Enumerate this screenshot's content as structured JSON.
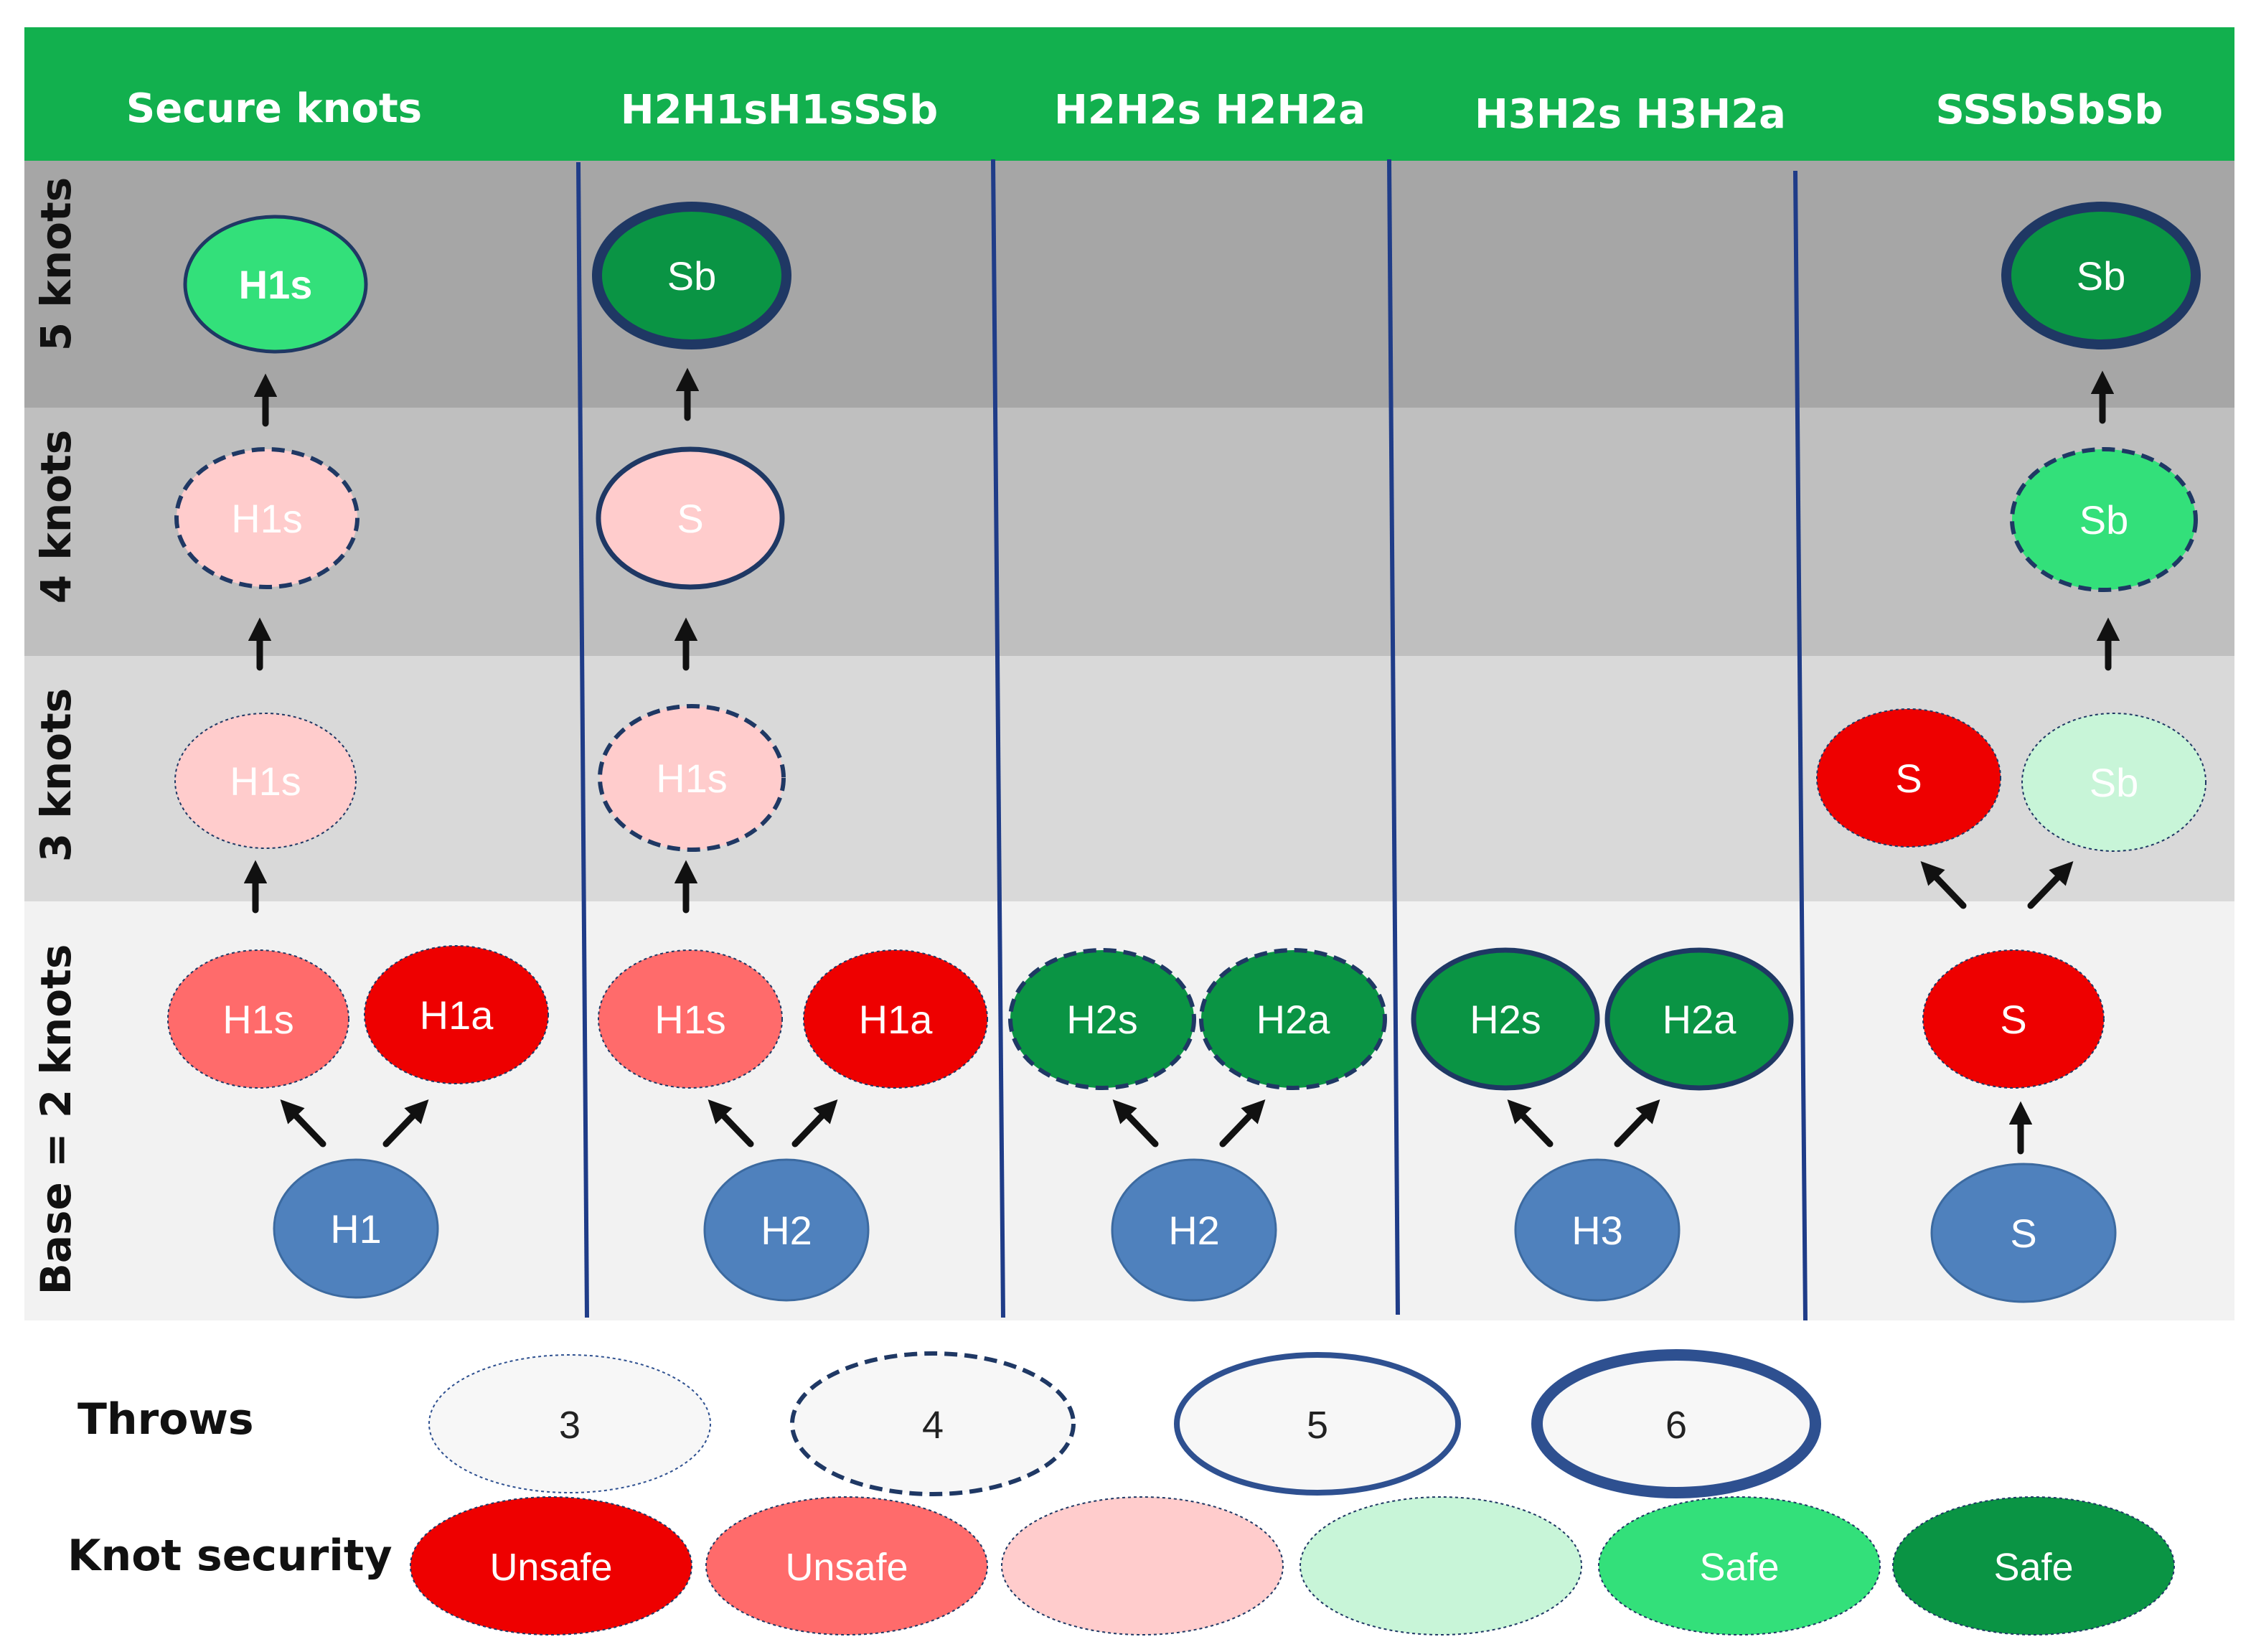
{
  "columns": [
    {
      "id": "secure",
      "label": "Secure knots"
    },
    {
      "id": "h2h1",
      "label": "H2H1sH1sSSb"
    },
    {
      "id": "h2h2",
      "label": "H2H2s H2H2a"
    },
    {
      "id": "h3h2",
      "label": "H3H2s H3H2a"
    },
    {
      "id": "sssb",
      "label": "SSSbSbSb"
    }
  ],
  "rows": [
    {
      "id": "r5",
      "label": "5 knots"
    },
    {
      "id": "r4",
      "label": "4 knots"
    },
    {
      "id": "r3",
      "label": "3 knots"
    },
    {
      "id": "r2",
      "label": "Base = 2 knots"
    }
  ],
  "colors": {
    "header_green": "#12b04e",
    "row5_bg": "#a6a6a6",
    "row4_bg": "#bfbfbf",
    "row3_bg": "#d9d9d9",
    "row2_bg": "#f2f2f2",
    "divider": "#1f3c88",
    "base_blue": "#4f81bd",
    "unsafe_dark": "#ee0000",
    "unsafe_mid": "#ff6b6b",
    "unsafe_light": "#ffcccc",
    "safe_light": "#c8f5d8",
    "safe_mid": "#33e07a",
    "safe_dark": "#0a9444",
    "outline": "#1f3864"
  },
  "nodes": {
    "c1_r5": "H1s",
    "c1_r4": "H1s",
    "c1_r3": "H1s",
    "c1_r2a": "H1s",
    "c1_r2b": "H1a",
    "c1_base": "H1",
    "c2_r5": "Sb",
    "c2_r4": "S",
    "c2_r3": "H1s",
    "c2_r2a": "H1s",
    "c2_r2b": "H1a",
    "c2_base": "H2",
    "c3_r2a": "H2s",
    "c3_r2b": "H2a",
    "c3_base": "H2",
    "c4_r2a": "H2s",
    "c4_r2b": "H2a",
    "c4_base": "H3",
    "c5_r5": "Sb",
    "c5_r4": "Sb",
    "c5_r3a": "S",
    "c5_r3b": "Sb",
    "c5_r2": "S",
    "c5_base": "S"
  },
  "legend": {
    "throws_label": "Throws",
    "throws": [
      "3",
      "4",
      "5",
      "6"
    ],
    "security_label": "Knot security",
    "security": [
      "Unsafe",
      "Unsafe",
      "",
      "",
      "Safe",
      "Safe"
    ]
  }
}
